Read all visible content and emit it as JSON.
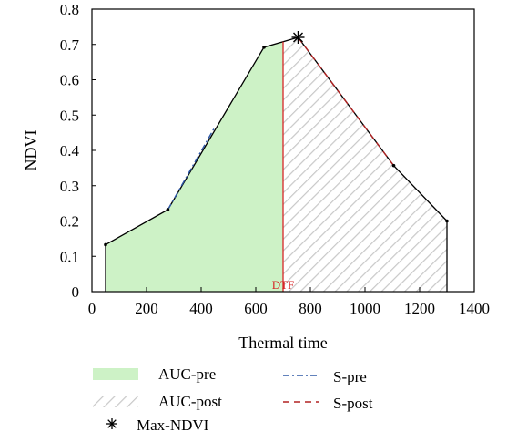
{
  "chart_data": {
    "type": "area",
    "xlabel": "Thermal time",
    "ylabel": "NDVI",
    "xlim": [
      0,
      1400
    ],
    "ylim": [
      0,
      0.8
    ],
    "xticks": [
      0,
      200,
      400,
      600,
      800,
      1000,
      1200,
      1400
    ],
    "yticks": [
      0,
      0.1,
      0.2,
      0.3,
      0.4,
      0.5,
      0.6,
      0.7,
      0.8
    ],
    "xtick_labels": [
      "0",
      "200",
      "400",
      "600",
      "800",
      "1000",
      "1200",
      "1400"
    ],
    "ytick_labels": [
      "0",
      "0.1",
      "0.2",
      "0.3",
      "0.4",
      "0.5",
      "0.6",
      "0.7",
      "0.8"
    ],
    "grid": false,
    "legend_position": "below",
    "ndvi_points": {
      "x": [
        50,
        278,
        630,
        755,
        1105,
        1300
      ],
      "y": [
        0.133,
        0.232,
        0.692,
        0.72,
        0.357,
        0.2
      ]
    },
    "s_pre": {
      "name": "S-pre",
      "x": [
        278,
        450
      ],
      "y": [
        0.232,
        0.466
      ],
      "color": "#2e58a6"
    },
    "s_post": {
      "name": "S-post",
      "x": [
        755,
        1105
      ],
      "y": [
        0.72,
        0.357
      ],
      "color": "#b22222"
    },
    "auc_pre": {
      "name": "AUC-pre",
      "x_range": [
        50,
        700
      ],
      "color": "#cdf2c6"
    },
    "auc_post": {
      "name": "AUC-post",
      "x_range": [
        700,
        1300
      ],
      "color": "#c8c8c8"
    },
    "max_ndvi": {
      "name": "Max-NDVI",
      "x": 755,
      "y": 0.72
    },
    "dtf": {
      "label": "DTF",
      "x": 700,
      "color": "#d62728"
    }
  }
}
